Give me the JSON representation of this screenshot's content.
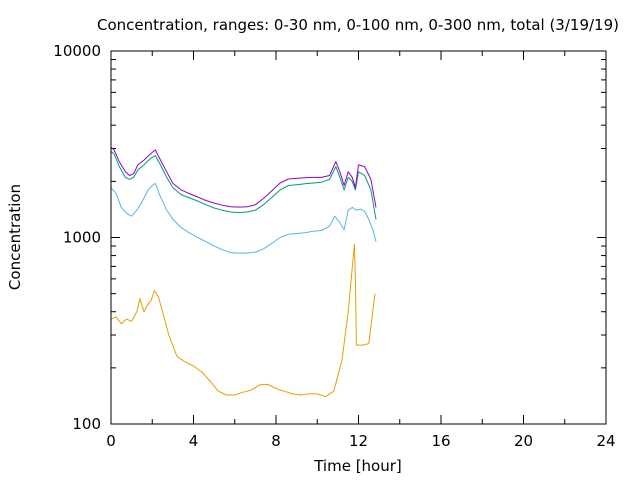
{
  "chart_data": {
    "type": "line",
    "title": "Concentration, ranges: 0-30 nm, 0-100 nm, 0-300 nm, total (3/19/19)",
    "xlabel": "Time [hour]",
    "ylabel": "Concentration",
    "xlim": [
      0,
      24
    ],
    "ylim": [
      100,
      10000
    ],
    "yscale": "log",
    "xticks": [
      0,
      4,
      8,
      12,
      16,
      20,
      24
    ],
    "yticks": [
      100,
      1000,
      10000
    ],
    "grid": false,
    "legend": "none",
    "series": [
      {
        "color": "#e69f00",
        "x": [
          0,
          0.25,
          0.5,
          0.75,
          1.0,
          1.25,
          1.4,
          1.6,
          1.8,
          1.95,
          2.1,
          2.3,
          2.5,
          2.8,
          3.2,
          3.6,
          4.0,
          4.4,
          4.8,
          5.2,
          5.6,
          6.0,
          6.4,
          6.8,
          7.2,
          7.6,
          8.0,
          8.4,
          8.8,
          9.2,
          9.6,
          10.0,
          10.4,
          10.8,
          11.2,
          11.5,
          11.8,
          11.85,
          11.9,
          12.2,
          12.5,
          12.8
        ],
        "y": [
          365,
          375,
          345,
          365,
          355,
          400,
          470,
          400,
          440,
          460,
          520,
          480,
          400,
          300,
          230,
          215,
          205,
          190,
          170,
          150,
          143,
          143,
          148,
          152,
          162,
          163,
          155,
          150,
          145,
          143,
          145,
          145,
          140,
          150,
          220,
          400,
          920,
          600,
          265,
          265,
          270,
          500
        ]
      },
      {
        "color": "#56b4e9",
        "x": [
          0,
          0.25,
          0.5,
          0.75,
          1.0,
          1.25,
          1.5,
          1.8,
          2.0,
          2.15,
          2.4,
          2.7,
          3.0,
          3.4,
          3.8,
          4.2,
          4.6,
          5.0,
          5.4,
          5.8,
          6.2,
          6.6,
          7.0,
          7.4,
          7.8,
          8.2,
          8.6,
          9.0,
          9.4,
          9.8,
          10.2,
          10.6,
          10.85,
          11.1,
          11.3,
          11.5,
          11.7,
          11.9,
          12.1,
          12.3,
          12.5,
          12.7,
          12.85
        ],
        "y": [
          1850,
          1720,
          1450,
          1350,
          1300,
          1400,
          1550,
          1800,
          1900,
          1950,
          1650,
          1400,
          1250,
          1130,
          1060,
          1000,
          950,
          900,
          860,
          830,
          825,
          825,
          835,
          870,
          930,
          1000,
          1040,
          1050,
          1060,
          1080,
          1090,
          1150,
          1300,
          1200,
          1100,
          1400,
          1450,
          1400,
          1420,
          1380,
          1250,
          1100,
          950
        ]
      },
      {
        "color": "#009e73",
        "x": [
          0,
          0.15,
          0.4,
          0.7,
          0.9,
          1.1,
          1.3,
          1.6,
          1.9,
          2.15,
          2.4,
          2.7,
          3.0,
          3.4,
          3.8,
          4.2,
          4.6,
          5.0,
          5.4,
          5.8,
          6.2,
          6.6,
          7.0,
          7.4,
          7.8,
          8.2,
          8.6,
          9.0,
          9.4,
          9.8,
          10.2,
          10.6,
          10.9,
          11.1,
          11.3,
          11.5,
          11.7,
          11.85,
          12.0,
          12.3,
          12.6,
          12.85
        ],
        "y": [
          2900,
          2800,
          2400,
          2100,
          2050,
          2100,
          2300,
          2450,
          2650,
          2750,
          2450,
          2100,
          1850,
          1700,
          1630,
          1570,
          1500,
          1440,
          1400,
          1370,
          1360,
          1370,
          1400,
          1500,
          1640,
          1800,
          1900,
          1920,
          1940,
          1960,
          1980,
          2050,
          2400,
          2100,
          1800,
          2100,
          2000,
          1800,
          2250,
          2150,
          1800,
          1250
        ]
      },
      {
        "color": "#9400d3",
        "x": [
          0,
          0.15,
          0.4,
          0.7,
          0.9,
          1.1,
          1.3,
          1.6,
          1.9,
          2.15,
          2.4,
          2.7,
          3.0,
          3.4,
          3.8,
          4.2,
          4.6,
          5.0,
          5.4,
          5.8,
          6.2,
          6.6,
          7.0,
          7.4,
          7.8,
          8.2,
          8.6,
          9.0,
          9.4,
          9.8,
          10.2,
          10.6,
          10.9,
          11.1,
          11.3,
          11.5,
          11.7,
          11.85,
          12.0,
          12.3,
          12.6,
          12.85
        ],
        "y": [
          3050,
          2950,
          2550,
          2250,
          2150,
          2200,
          2450,
          2600,
          2800,
          2950,
          2600,
          2250,
          1950,
          1800,
          1720,
          1650,
          1580,
          1530,
          1490,
          1460,
          1455,
          1460,
          1500,
          1620,
          1780,
          1960,
          2060,
          2080,
          2090,
          2100,
          2100,
          2150,
          2550,
          2250,
          1900,
          2250,
          2100,
          1850,
          2450,
          2400,
          2050,
          1450
        ]
      }
    ]
  }
}
